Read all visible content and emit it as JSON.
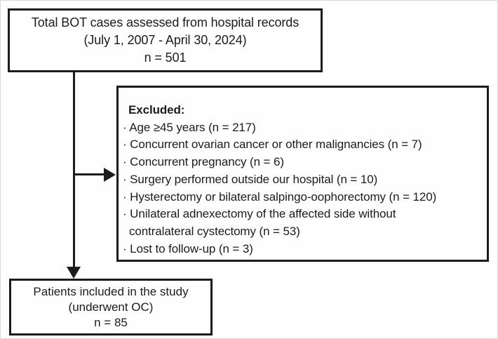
{
  "figure": {
    "type": "flow-diagram",
    "ink_color": "#1c1c1c",
    "background_color": "#fefefe"
  },
  "top_box": {
    "lines": [
      "Total BOT cases assessed from hospital records",
      "(July 1, 2007 - April 30, 2024)",
      "n = 501"
    ]
  },
  "excluded_box": {
    "heading": "Excluded:",
    "lines": [
      "· Age ≥45 years (n = 217)",
      "· Concurrent ovarian cancer or other malignancies (n = 7)",
      "· Concurrent pregnancy (n = 6)",
      "· Surgery performed outside our hospital (n = 10)",
      "· Hysterectomy or bilateral salpingo-oophorectomy (n = 120)",
      "· Unilateral adnexectomy of the affected side without",
      "contralateral cystectomy (n = 53)",
      "· Lost to follow-up (n = 3)"
    ]
  },
  "included_box": {
    "lines": [
      "Patients included in the study",
      "(underwent OC)",
      "n = 85"
    ]
  }
}
